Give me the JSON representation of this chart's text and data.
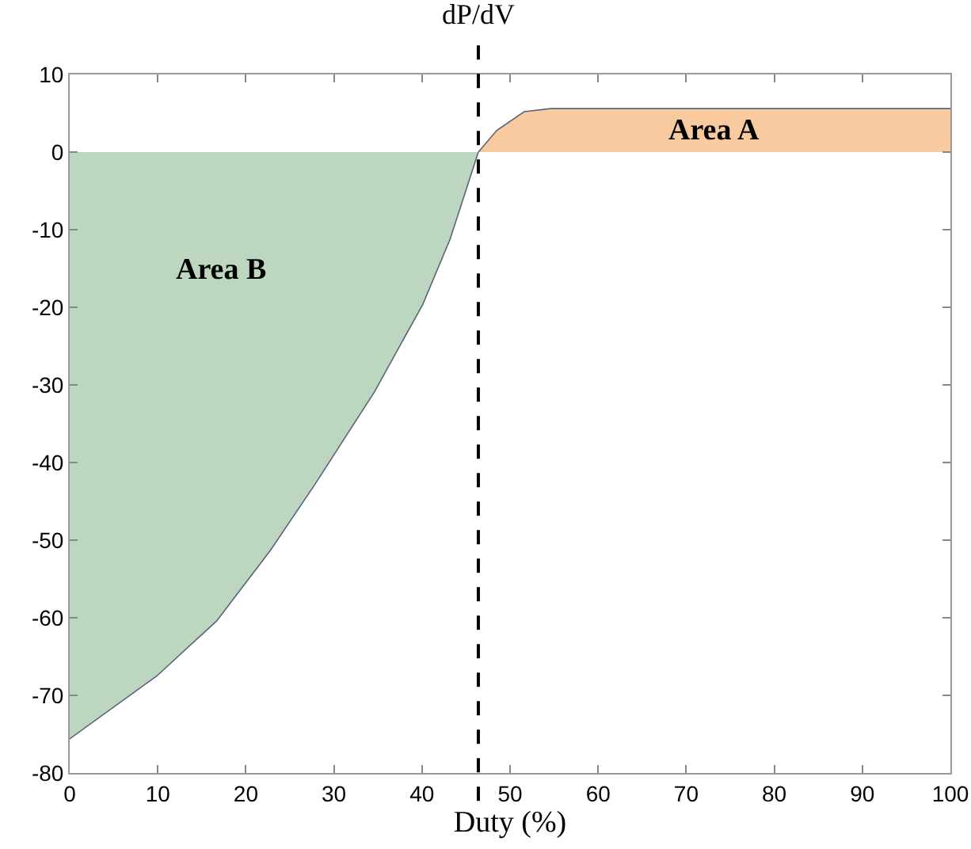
{
  "chart_data": {
    "type": "area",
    "xlabel": "Duty (%)",
    "xlim": [
      0,
      100
    ],
    "ylim": [
      -80,
      10
    ],
    "xticks": [
      0,
      10,
      20,
      30,
      40,
      50,
      60,
      70,
      80,
      90,
      100
    ],
    "yticks": [
      -80,
      -70,
      -60,
      -50,
      -40,
      -30,
      -20,
      -10,
      0,
      10
    ],
    "grid": false,
    "series": [
      {
        "name": "Area B",
        "color": "#bcd6bf",
        "x": [
          0,
          9.9,
          16.7,
          22.8,
          27.8,
          34.6,
          40.1,
          43.2,
          46.4
        ],
        "values": [
          -75.6,
          -67.5,
          -60.4,
          -51.3,
          -42.9,
          -30.9,
          -19.6,
          -11.2,
          0
        ]
      },
      {
        "name": "Area A",
        "color": "#f9c9a0",
        "x": [
          46.4,
          48.5,
          51.6,
          54.6,
          60,
          70,
          80,
          90,
          100
        ],
        "values": [
          0,
          2.8,
          5.2,
          5.6,
          5.6,
          5.6,
          5.6,
          5.6,
          5.6
        ]
      }
    ],
    "ref_lines": [
      {
        "axis": "x",
        "value": 46.4,
        "label": "dP/dV",
        "color": "#000000",
        "line_style": "dashed"
      }
    ]
  }
}
